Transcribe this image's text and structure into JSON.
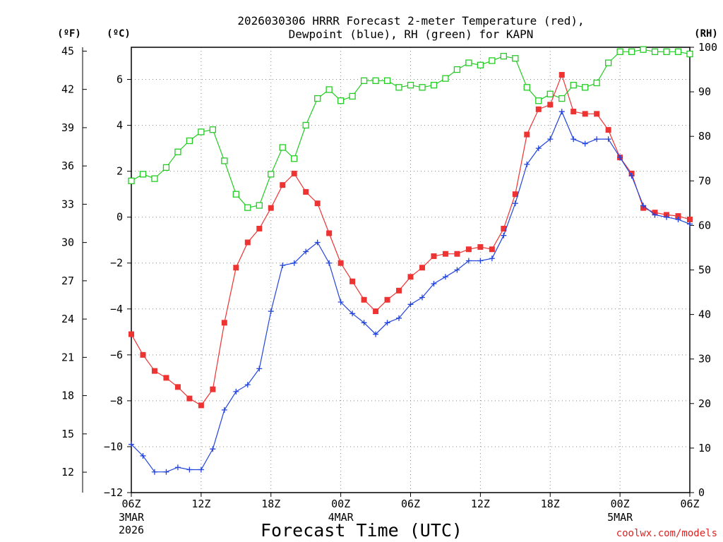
{
  "chart_data": {
    "type": "line",
    "title": "2026030306 HRRR Forecast 2-meter Temperature (red),",
    "subtitle": "Dewpoint (blue), RH (green) for KAPN",
    "xlabel": "Forecast Time (UTC)",
    "credit": "coolwx.com/models",
    "unit_f": "(ºF)",
    "unit_c": "(ºC)",
    "unit_rh": "(RH)",
    "x_range_hours": [
      0,
      48
    ],
    "x_ticks": [
      {
        "h": 0,
        "label": "06Z",
        "sub1": "3MAR",
        "sub2": "2026"
      },
      {
        "h": 6,
        "label": "12Z",
        "sub1": "",
        "sub2": ""
      },
      {
        "h": 12,
        "label": "18Z",
        "sub1": "",
        "sub2": ""
      },
      {
        "h": 18,
        "label": "00Z",
        "sub1": "4MAR",
        "sub2": ""
      },
      {
        "h": 24,
        "label": "06Z",
        "sub1": "",
        "sub2": ""
      },
      {
        "h": 30,
        "label": "12Z",
        "sub1": "",
        "sub2": ""
      },
      {
        "h": 36,
        "label": "18Z",
        "sub1": "",
        "sub2": ""
      },
      {
        "h": 42,
        "label": "00Z",
        "sub1": "5MAR",
        "sub2": ""
      },
      {
        "h": 48,
        "label": "06Z",
        "sub1": "",
        "sub2": ""
      }
    ],
    "ylim_c": [
      -12,
      7.4
    ],
    "y_ticks_c": [
      "-12",
      "-10",
      "-8",
      "-6",
      "-4",
      "-2",
      "0",
      "2",
      "4",
      "6"
    ],
    "ylim_f": [
      10.4,
      45.3
    ],
    "y_ticks_f": [
      "12",
      "15",
      "18",
      "21",
      "24",
      "27",
      "30",
      "33",
      "36",
      "39",
      "42",
      "45"
    ],
    "ylim_rh": [
      0,
      100
    ],
    "y_ticks_rh": [
      "0",
      "10",
      "20",
      "30",
      "40",
      "50",
      "60",
      "70",
      "80",
      "90",
      "100"
    ],
    "series": [
      {
        "name": "2-meter Temperature",
        "axis": "c",
        "color": "#ee3333",
        "marker": "filled-square",
        "values": [
          -5.1,
          -6.0,
          -6.7,
          -7.0,
          -7.4,
          -7.9,
          -8.2,
          -7.5,
          -4.6,
          -2.2,
          -1.1,
          -0.5,
          0.4,
          1.4,
          1.9,
          1.1,
          0.6,
          -0.7,
          -2.0,
          -2.8,
          -3.6,
          -4.1,
          -3.6,
          -3.2,
          -2.6,
          -2.2,
          -1.7,
          -1.6,
          -1.6,
          -1.4,
          -1.3,
          -1.4,
          -0.5,
          1.0,
          3.6,
          4.7,
          4.9,
          6.2,
          4.6,
          4.5,
          4.5,
          3.8,
          2.6,
          1.9,
          0.4,
          0.2,
          0.1,
          0.05,
          -0.1
        ]
      },
      {
        "name": "Dewpoint",
        "axis": "c",
        "color": "#2244dd",
        "marker": "plus",
        "values": [
          -9.9,
          -10.4,
          -11.1,
          -11.1,
          -10.9,
          -11.0,
          -11.0,
          -10.1,
          -8.4,
          -7.6,
          -7.3,
          -6.6,
          -4.1,
          -2.1,
          -2.0,
          -1.5,
          -1.1,
          -2.0,
          -3.7,
          -4.2,
          -4.6,
          -5.1,
          -4.6,
          -4.4,
          -3.8,
          -3.5,
          -2.9,
          -2.6,
          -2.3,
          -1.9,
          -1.9,
          -1.8,
          -0.8,
          0.6,
          2.3,
          3.0,
          3.4,
          4.6,
          3.4,
          3.2,
          3.4,
          3.4,
          2.6,
          1.8,
          0.5,
          0.1,
          0.0,
          -0.1,
          -0.3
        ]
      },
      {
        "name": "RH",
        "axis": "rh",
        "color": "#22cc22",
        "marker": "open-square",
        "values": [
          70,
          71.5,
          70.5,
          73,
          76.5,
          79,
          81,
          81.5,
          74.5,
          67,
          64,
          64.5,
          71.5,
          77.5,
          75,
          82.5,
          88.5,
          90.5,
          88,
          89,
          92.5,
          92.5,
          92.5,
          91,
          91.5,
          91,
          91.5,
          93,
          95,
          96.5,
          96,
          97,
          98,
          97.5,
          91,
          88,
          89.5,
          88.5,
          91.5,
          91,
          92,
          96.5,
          99,
          99,
          99.5,
          99,
          99,
          99,
          98.5
        ]
      }
    ]
  }
}
